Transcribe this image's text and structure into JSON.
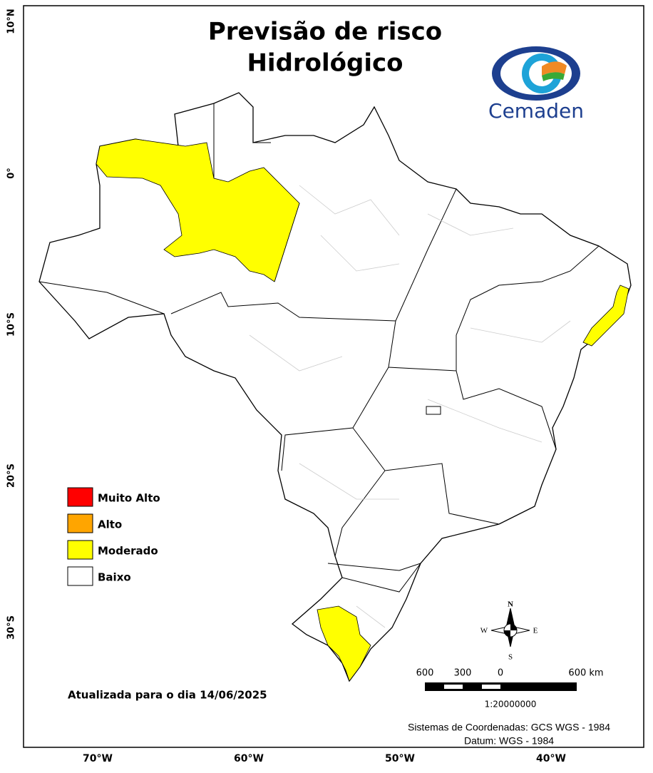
{
  "title_lines": [
    "Previsão de risco",
    "Hidrológico"
  ],
  "logo": {
    "text": "Cemaden"
  },
  "legend": [
    {
      "label": "Muito Alto",
      "color": "#ff0000"
    },
    {
      "label": "Alto",
      "color": "#ffa500"
    },
    {
      "label": "Moderado",
      "color": "#ffff00"
    },
    {
      "label": "Baixo",
      "color": "#ffffff"
    }
  ],
  "updated": "Atualizada para o dia 14/06/2025",
  "scale_bar": {
    "labels": [
      "600",
      "300",
      "0",
      "600 km"
    ],
    "ratio": "1:20000000"
  },
  "compass": {
    "n": "N",
    "s": "S",
    "w": "W",
    "e": "E"
  },
  "coordinates": [
    "Sistemas de Coordenadas: GCS WGS - 1984",
    "Datum: WGS - 1984"
  ],
  "lat_labels": [
    "10°N",
    "0°",
    "10°S",
    "20°S",
    "30°S"
  ],
  "lon_labels": [
    "70°W",
    "60°W",
    "50°W",
    "40°W"
  ]
}
